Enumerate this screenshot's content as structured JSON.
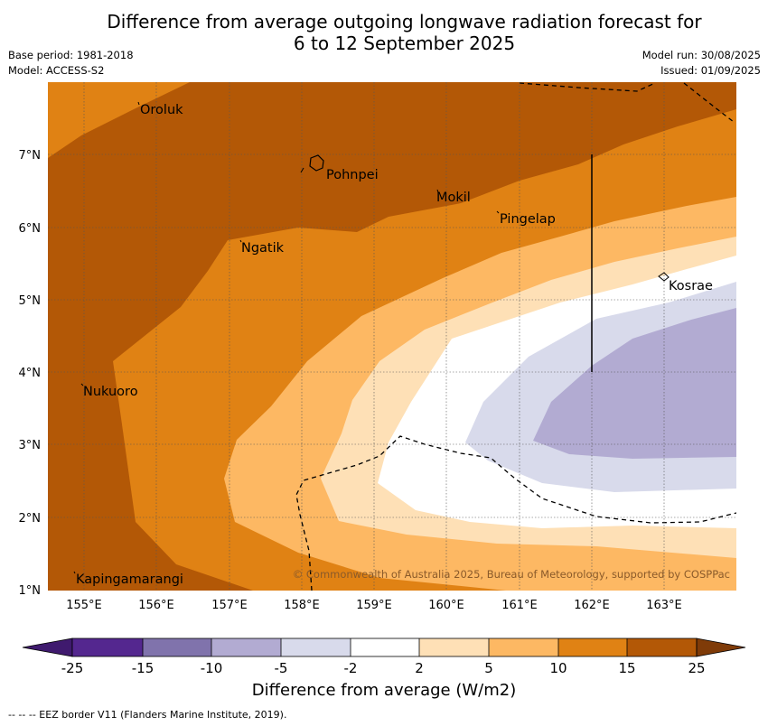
{
  "title": {
    "line1": "Difference from average outgoing longwave radiation forecast for",
    "line2": "6 to 12 September 2025"
  },
  "meta_left": {
    "base_period": "Base period: 1981-2018",
    "model": "Model: ACCESS-S2"
  },
  "meta_right": {
    "model_run": "Model run: 30/08/2025",
    "issued": "Issued: 01/09/2025"
  },
  "map": {
    "lon_ticks": [
      "155°E",
      "156°E",
      "157°E",
      "158°E",
      "159°E",
      "160°E",
      "161°E",
      "162°E",
      "163°E"
    ],
    "lat_ticks": [
      "1°N",
      "2°N",
      "3°N",
      "4°N",
      "5°N",
      "6°N",
      "7°N"
    ],
    "places": [
      {
        "name": "Oroluk"
      },
      {
        "name": "Pohnpei"
      },
      {
        "name": "Mokil"
      },
      {
        "name": "Pingelap"
      },
      {
        "name": "Ngatik"
      },
      {
        "name": "Kosrae"
      },
      {
        "name": "Nukuoro"
      },
      {
        "name": "Kapingamarangi"
      }
    ],
    "copyright": "© Commonwealth of Australia 2025, Bureau of Meteorology, supported by COSPPac"
  },
  "colorbar": {
    "levels": [
      "-25",
      "-15",
      "-10",
      "-5",
      "-2",
      "2",
      "5",
      "10",
      "15",
      "25"
    ],
    "colors": [
      "#3f1a6e",
      "#54278f",
      "#8073ac",
      "#b2abd2",
      "#d8daeb",
      "#ffffff",
      "#fee0b6",
      "#fdb863",
      "#e08214",
      "#b35806",
      "#7f3b08"
    ],
    "label": "Difference from average (W/m2)"
  },
  "footnote": "--  --  -- EEZ border V11 (Flanders Marine Institute, 2019)."
}
